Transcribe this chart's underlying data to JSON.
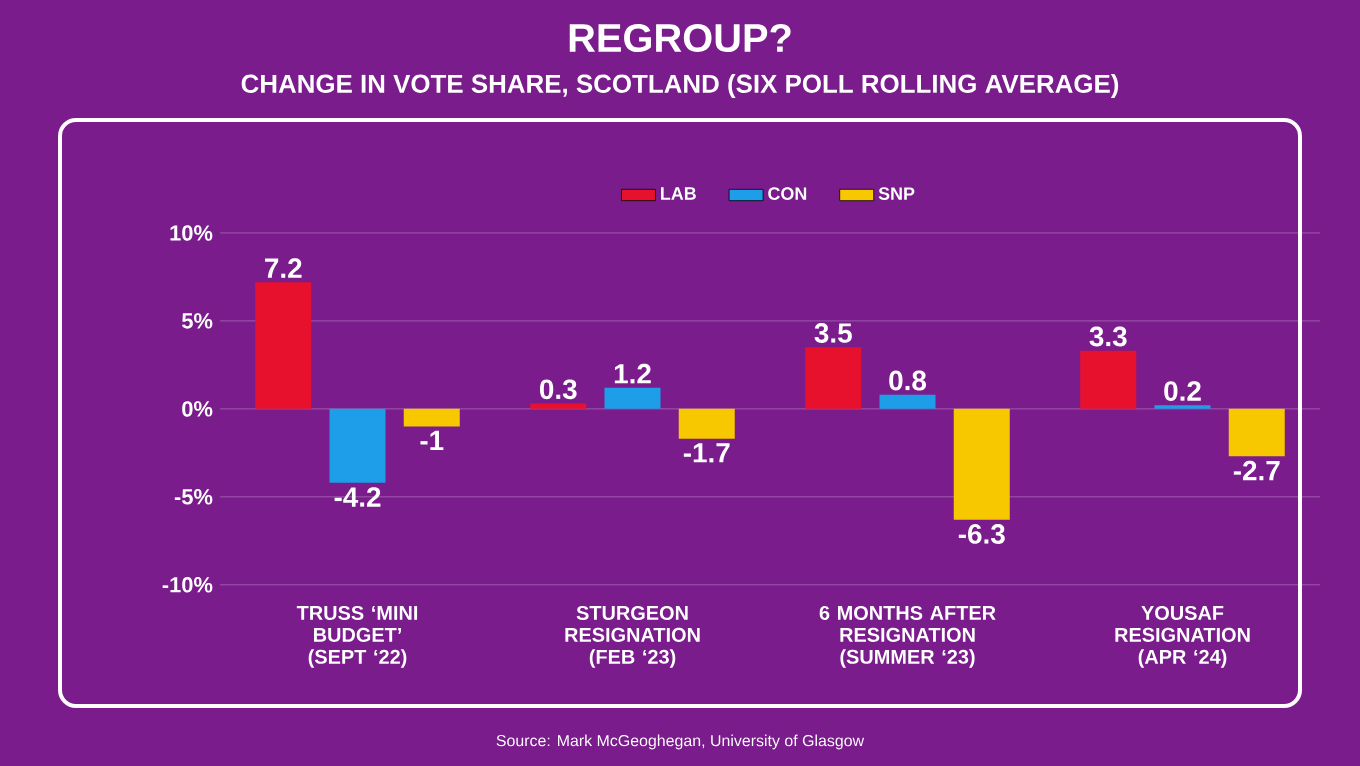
{
  "chart_data": {
    "type": "bar",
    "title": "REGROUP?",
    "subtitle": "CHANGE IN VOTE SHARE, SCOTLAND (SIX POLL ROLLING AVERAGE)",
    "categories": [
      "TRUSS ‘MINI BUDGET’ (SEPT ‘22)",
      "STURGEON RESIGNATION (FEB ‘23)",
      "6 MONTHS AFTER RESIGNATION (SUMMER ‘23)",
      "YOUSAF RESIGNATION (APR ‘24)"
    ],
    "series": [
      {
        "name": "LAB",
        "color": "#e8112d",
        "values": [
          7.2,
          0.3,
          3.5,
          3.3
        ]
      },
      {
        "name": "CON",
        "color": "#1e9ee8",
        "values": [
          -4.2,
          1.2,
          0.8,
          0.2
        ]
      },
      {
        "name": "SNP",
        "color": "#f7c800",
        "values": [
          -1,
          -1.7,
          -6.3,
          -2.7
        ]
      }
    ],
    "ylim": [
      -10,
      10
    ],
    "yticks": [
      {
        "value": -10,
        "label": "-10%"
      },
      {
        "value": -5,
        "label": "-5%"
      },
      {
        "value": 0,
        "label": "0%"
      },
      {
        "value": 5,
        "label": "5%"
      },
      {
        "value": 10,
        "label": "10%"
      }
    ],
    "data_labels": true,
    "legend": "top",
    "grid": "y",
    "annotations": [
      "Source: Mark McGeoghegan, University of Glasgow"
    ]
  }
}
